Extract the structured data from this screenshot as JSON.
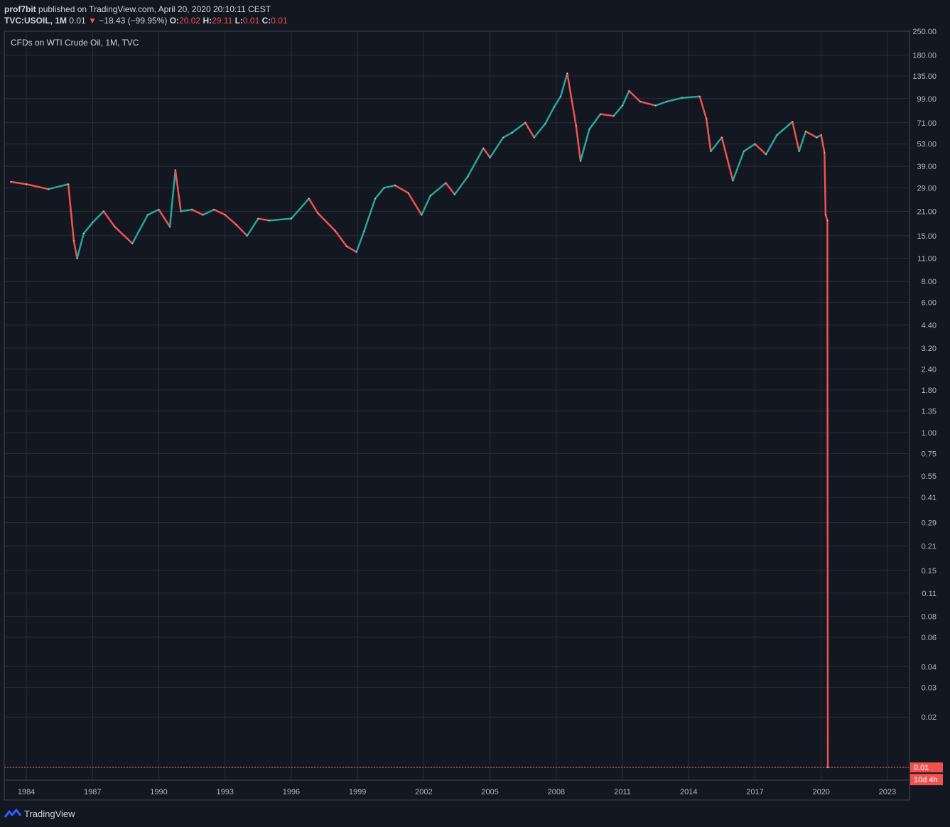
{
  "header": {
    "author": "prof7bit",
    "published_text": "published on TradingView.com, April 20, 2020 20:10:11 CEST",
    "symbol": "TVC:USOIL, 1M",
    "last": "0.01",
    "arrow": "▼",
    "change": "−18.43 (−99.95%)",
    "o_label": "O:",
    "o_value": "20.02",
    "h_label": "H:",
    "h_value": "29.11",
    "l_label": "L:",
    "l_value": "0.01",
    "c_label": "C:",
    "c_value": "0.01"
  },
  "price_label": "0.01",
  "countdown_label": "10d 4h",
  "footer": {
    "brand": "TradingView"
  },
  "colors": {
    "up": "#26a69a",
    "down": "#ef5350",
    "background": "#131722",
    "grid": "#2a2e39",
    "text": "#b2b5be"
  },
  "chart_data": {
    "type": "line",
    "title": "CFDs on WTI Crude Oil, 1M, TVC",
    "scale": "log",
    "ylim": [
      0.008,
      250
    ],
    "xlim": [
      1983.0,
      2024.0
    ],
    "y_ticks": [
      "250.00",
      "180.00",
      "135.00",
      "99.00",
      "71.00",
      "53.00",
      "39.00",
      "29.00",
      "21.00",
      "15.00",
      "11.00",
      "8.00",
      "6.00",
      "4.40",
      "3.20",
      "2.40",
      "1.80",
      "1.35",
      "1.00",
      "0.75",
      "0.55",
      "0.41",
      "0.29",
      "0.21",
      "0.15",
      "0.11",
      "0.08",
      "0.06",
      "0.04",
      "0.03",
      "0.02",
      "0.01"
    ],
    "x_ticks": [
      "1984",
      "1987",
      "1990",
      "1993",
      "1996",
      "1999",
      "2002",
      "2005",
      "2008",
      "2011",
      "2014",
      "2017",
      "2020",
      "2023"
    ],
    "grid": true,
    "series": [
      {
        "x": [
          1983.3,
          1984.0,
          1985.0,
          1985.9,
          1986.15,
          1986.3,
          1986.6,
          1987.0,
          1987.5,
          1988.0,
          1988.8,
          1989.5,
          1990.0,
          1990.5,
          1990.75,
          1991.0,
          1991.5,
          1992.0,
          1992.5,
          1993.0,
          1993.5,
          1994.0,
          1994.5,
          1995.0,
          1996.0,
          1996.8,
          1997.2,
          1998.0,
          1998.5,
          1998.95,
          1999.3,
          1999.8,
          2000.2,
          2000.7,
          2001.3,
          2001.9,
          2002.3,
          2003.0,
          2003.4,
          2004.0,
          2004.7,
          2005.0,
          2005.6,
          2006.0,
          2006.6,
          2007.0,
          2007.5,
          2007.9,
          2008.2,
          2008.5,
          2008.9,
          2009.1,
          2009.5,
          2010.0,
          2010.6,
          2011.0,
          2011.3,
          2011.8,
          2012.5,
          2013.0,
          2013.7,
          2014.5,
          2014.8,
          2015.0,
          2015.5,
          2016.0,
          2016.5,
          2017.0,
          2017.5,
          2018.0,
          2018.7,
          2019.0,
          2019.3,
          2019.8,
          2020.0,
          2020.15,
          2020.2,
          2020.28,
          2020.3
        ],
        "values": [
          31.5,
          30.5,
          28.5,
          30.5,
          14.0,
          11.0,
          15.5,
          18.0,
          21.0,
          17.0,
          13.5,
          20.0,
          21.5,
          17.0,
          37.0,
          21.0,
          21.5,
          20.0,
          21.5,
          20.0,
          17.5,
          15.0,
          19.0,
          18.5,
          19.0,
          25.0,
          20.5,
          16.0,
          13.0,
          12.0,
          16.0,
          25.0,
          29.0,
          30.0,
          27.0,
          20.0,
          26.0,
          31.0,
          26.5,
          34.0,
          50.0,
          44.0,
          58.0,
          62.0,
          71.0,
          58.0,
          70.0,
          88.0,
          102.0,
          140.0,
          68.0,
          42.0,
          65.0,
          80.0,
          78.0,
          90.0,
          110.0,
          95.0,
          90.0,
          95.0,
          100.0,
          102.0,
          75.0,
          48.0,
          58.0,
          32.0,
          48.0,
          53.0,
          46.0,
          60.0,
          72.0,
          48.0,
          63.0,
          58.0,
          60.0,
          47.0,
          20.0,
          18.5,
          0.01
        ]
      }
    ]
  }
}
